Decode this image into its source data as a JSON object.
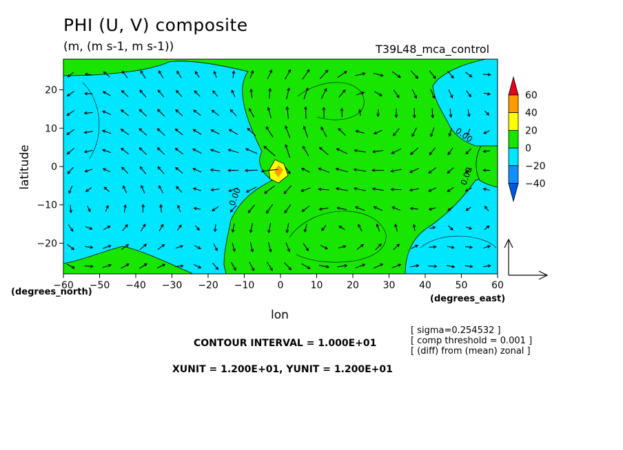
{
  "chart_data": {
    "type": "heatmap",
    "title": "PHI (U, V) composite",
    "subtitle": "(m, (m s-1, m s-1))",
    "run_name": "T39L48_mca_control",
    "xlabel": "lon",
    "ylabel": "latitude",
    "x_unit_label": "(degrees_east)",
    "y_unit_label": "(degrees_north)",
    "xlim": [
      -60,
      60
    ],
    "ylim": [
      -28,
      28
    ],
    "x_ticks": [
      -60,
      -50,
      -40,
      -30,
      -20,
      -10,
      0,
      10,
      20,
      30,
      40,
      50,
      60
    ],
    "y_ticks": [
      -20,
      -10,
      0,
      10,
      20
    ],
    "x_tick_labels": [
      "−60",
      "−50",
      "−40",
      "−30",
      "−20",
      "−10",
      "0",
      "10",
      "20",
      "30",
      "40",
      "50",
      "60"
    ],
    "y_tick_labels": [
      "−20",
      "−10",
      "0",
      "10",
      "20"
    ],
    "contour_labels": [
      "0.00",
      "0.00",
      "0.00"
    ],
    "colorbar": {
      "labels": [
        "60",
        "40",
        "20",
        "0",
        "−20",
        "−40"
      ],
      "colors": [
        "#e8001a",
        "#ff9a00",
        "#ffff00",
        "#18e600",
        "#00e6ff",
        "#1090ff",
        "#0058e6"
      ]
    },
    "vector_reference": {
      "u": 12,
      "v": 12
    },
    "notes": [
      "[ sigma=0.254532 ]",
      "[ comp threshold = 0.001 ]",
      "[ (diff) from (mean) zonal ]"
    ],
    "contour_interval_text": "CONTOUR INTERVAL = 1.000E+01",
    "unit_text": "XUNIT = 1.200E+01, YUNIT = 1.200E+01"
  }
}
